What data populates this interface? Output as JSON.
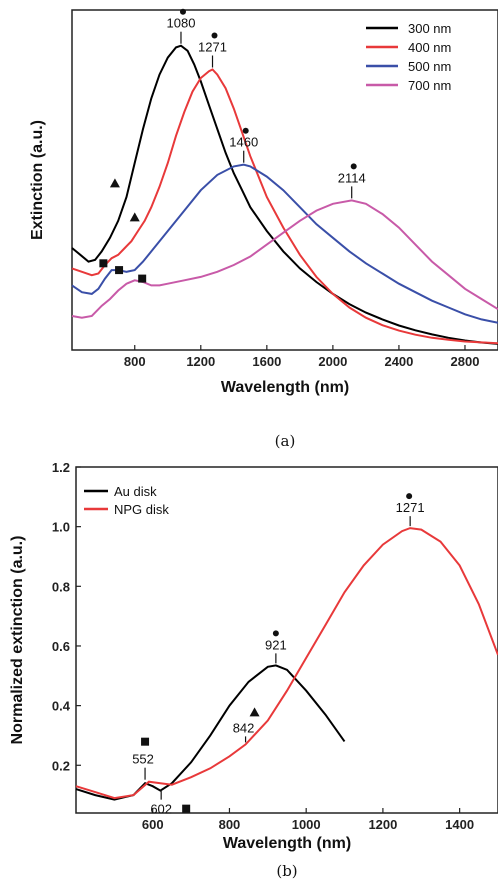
{
  "chart_data": [
    {
      "type": "line",
      "panel_label": "(a)",
      "xlabel": "Wavelength (nm)",
      "ylabel": "Extinction (a.u.)",
      "xlim": [
        420,
        3000
      ],
      "ylim": [
        0,
        1
      ],
      "x_ticks": [
        800,
        1200,
        1600,
        2000,
        2400,
        2800
      ],
      "y_ticks_shown": false,
      "grid": false,
      "legend_position": "top-right",
      "series": [
        {
          "name": "300 nm",
          "color": "#000000",
          "x": [
            420,
            470,
            520,
            560,
            600,
            650,
            700,
            750,
            800,
            850,
            900,
            950,
            1000,
            1050,
            1080,
            1120,
            1160,
            1200,
            1250,
            1300,
            1350,
            1400,
            1450,
            1500,
            1600,
            1700,
            1800,
            1900,
            2000,
            2100,
            2200,
            2300,
            2400,
            2500,
            2600,
            2700,
            2800,
            2900,
            3000
          ],
          "y": [
            0.3,
            0.28,
            0.26,
            0.265,
            0.29,
            0.33,
            0.38,
            0.45,
            0.55,
            0.65,
            0.74,
            0.81,
            0.86,
            0.89,
            0.895,
            0.88,
            0.84,
            0.79,
            0.72,
            0.65,
            0.58,
            0.52,
            0.47,
            0.42,
            0.35,
            0.29,
            0.24,
            0.2,
            0.165,
            0.135,
            0.11,
            0.09,
            0.072,
            0.058,
            0.046,
            0.036,
            0.028,
            0.022,
            0.018
          ]
        },
        {
          "name": "400 nm",
          "color": "#e8393a",
          "x": [
            420,
            480,
            540,
            580,
            620,
            660,
            700,
            740,
            780,
            820,
            860,
            900,
            950,
            1000,
            1050,
            1100,
            1150,
            1200,
            1250,
            1271,
            1300,
            1350,
            1400,
            1450,
            1500,
            1600,
            1700,
            1800,
            1900,
            2000,
            2100,
            2200,
            2300,
            2400,
            2500,
            2600,
            2700,
            2800,
            3000
          ],
          "y": [
            0.24,
            0.23,
            0.22,
            0.225,
            0.25,
            0.27,
            0.28,
            0.3,
            0.32,
            0.35,
            0.38,
            0.42,
            0.48,
            0.55,
            0.63,
            0.7,
            0.76,
            0.8,
            0.82,
            0.825,
            0.81,
            0.77,
            0.71,
            0.64,
            0.57,
            0.45,
            0.36,
            0.28,
            0.215,
            0.165,
            0.125,
            0.095,
            0.073,
            0.057,
            0.045,
            0.036,
            0.03,
            0.025,
            0.02
          ]
        },
        {
          "name": "500 nm",
          "color": "#3a4fa8",
          "x": [
            420,
            480,
            540,
            580,
            620,
            660,
            700,
            750,
            800,
            850,
            900,
            1000,
            1100,
            1200,
            1300,
            1400,
            1460,
            1500,
            1600,
            1700,
            1800,
            1900,
            2000,
            2100,
            2200,
            2300,
            2400,
            2500,
            2600,
            2700,
            2800,
            2900,
            3000
          ],
          "y": [
            0.19,
            0.17,
            0.165,
            0.18,
            0.21,
            0.235,
            0.235,
            0.23,
            0.235,
            0.26,
            0.29,
            0.35,
            0.41,
            0.47,
            0.515,
            0.54,
            0.545,
            0.54,
            0.51,
            0.47,
            0.42,
            0.37,
            0.33,
            0.29,
            0.255,
            0.225,
            0.195,
            0.17,
            0.145,
            0.125,
            0.105,
            0.09,
            0.08
          ]
        },
        {
          "name": "700 nm",
          "color": "#c85aa8",
          "x": [
            420,
            480,
            540,
            600,
            650,
            700,
            750,
            800,
            850,
            900,
            950,
            1000,
            1100,
            1200,
            1300,
            1400,
            1500,
            1600,
            1700,
            1800,
            1900,
            2000,
            2114,
            2200,
            2300,
            2400,
            2500,
            2600,
            2700,
            2800,
            2900,
            3000
          ],
          "y": [
            0.1,
            0.095,
            0.1,
            0.13,
            0.15,
            0.175,
            0.195,
            0.205,
            0.2,
            0.19,
            0.19,
            0.195,
            0.205,
            0.215,
            0.23,
            0.25,
            0.275,
            0.31,
            0.345,
            0.38,
            0.41,
            0.43,
            0.44,
            0.43,
            0.4,
            0.36,
            0.31,
            0.26,
            0.22,
            0.18,
            0.15,
            0.12
          ]
        }
      ],
      "annotations": [
        {
          "text": "1080",
          "x": 1080,
          "marker": "circle"
        },
        {
          "text": "1271",
          "x": 1271,
          "marker": "circle"
        },
        {
          "text": "1460",
          "x": 1460,
          "marker": "circle"
        },
        {
          "text": "2114",
          "x": 2114,
          "marker": "circle"
        }
      ],
      "markers": [
        {
          "shape": "triangle",
          "x": 680,
          "y": 0.49
        },
        {
          "shape": "triangle",
          "x": 800,
          "y": 0.39
        },
        {
          "shape": "square",
          "x": 610,
          "y": 0.255
        },
        {
          "shape": "square",
          "x": 705,
          "y": 0.235
        },
        {
          "shape": "square",
          "x": 845,
          "y": 0.21
        }
      ]
    },
    {
      "type": "line",
      "panel_label": "(b)",
      "xlabel": "Wavelength (nm)",
      "ylabel": "Normalized extinction (a.u.)",
      "xlim": [
        400,
        1500
      ],
      "ylim": [
        0.04,
        1.2
      ],
      "x_ticks": [
        600,
        800,
        1000,
        1200,
        1400
      ],
      "y_ticks": [
        0.2,
        0.4,
        0.6,
        0.8,
        1.0,
        1.2
      ],
      "grid": false,
      "legend_position": "top-left",
      "series": [
        {
          "name": "Au disk",
          "color": "#000000",
          "x": [
            400,
            450,
            500,
            550,
            580,
            600,
            620,
            650,
            700,
            750,
            800,
            850,
            900,
            921,
            950,
            1000,
            1050,
            1100
          ],
          "y": [
            0.12,
            0.1,
            0.085,
            0.1,
            0.14,
            0.13,
            0.115,
            0.14,
            0.21,
            0.3,
            0.4,
            0.48,
            0.53,
            0.535,
            0.52,
            0.45,
            0.37,
            0.28
          ]
        },
        {
          "name": "NPG disk",
          "color": "#e8393a",
          "x": [
            400,
            450,
            500,
            550,
            590,
            620,
            650,
            700,
            750,
            800,
            842,
            900,
            950,
            1000,
            1050,
            1100,
            1150,
            1200,
            1250,
            1271,
            1300,
            1350,
            1400,
            1450,
            1500
          ],
          "y": [
            0.13,
            0.11,
            0.09,
            0.1,
            0.145,
            0.14,
            0.135,
            0.16,
            0.19,
            0.23,
            0.27,
            0.35,
            0.45,
            0.56,
            0.67,
            0.78,
            0.87,
            0.94,
            0.985,
            0.995,
            0.99,
            0.95,
            0.87,
            0.74,
            0.57
          ]
        }
      ],
      "annotations": [
        {
          "text": "1271",
          "x": 1271,
          "marker": "circle"
        },
        {
          "text": "921",
          "x": 921,
          "marker": "circle"
        },
        {
          "text": "842",
          "x": 842,
          "marker": "triangle"
        },
        {
          "text": "552",
          "x": 552,
          "marker": "square"
        },
        {
          "text": "602",
          "x": 602,
          "marker": "square"
        }
      ]
    }
  ]
}
